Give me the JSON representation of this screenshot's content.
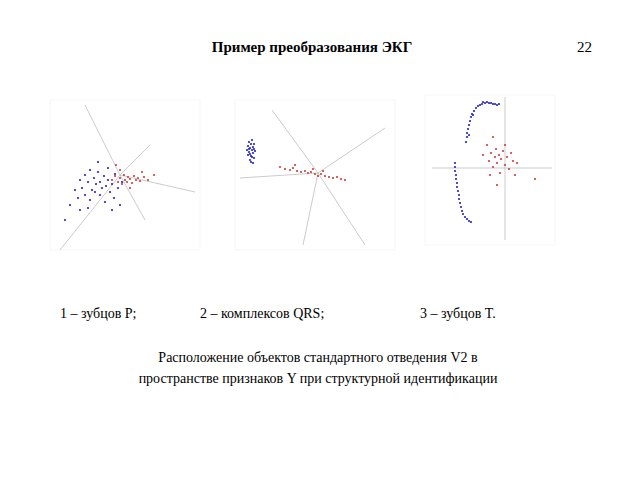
{
  "slide": {
    "title": "Пример преобразования ЭКГ",
    "page": 22,
    "caption": [
      "Расположение объектов стандартного отведения V2 в",
      "пространстве признаков Y при структурной идентификации"
    ]
  },
  "chart_data": [
    {
      "type": "scatter",
      "title": "1 – зубцов P;",
      "tick_labels": false,
      "xlim": [
        0,
        150
      ],
      "ylim": [
        0,
        150
      ],
      "series": [
        {
          "color": "#2424c8",
          "marker": "dot",
          "x": [
            20,
            25,
            28,
            30,
            32,
            35,
            35,
            38,
            40,
            40,
            42,
            44,
            45,
            46,
            48,
            50,
            50,
            52,
            54,
            55,
            56,
            58,
            60,
            62,
            64,
            65,
            68,
            70,
            72,
            30,
            15,
            48,
            58,
            38,
            62
          ],
          "values": [
            45,
            60,
            52,
            70,
            62,
            55,
            75,
            68,
            50,
            80,
            60,
            72,
            58,
            66,
            78,
            55,
            68,
            62,
            74,
            48,
            64,
            70,
            58,
            66,
            52,
            76,
            62,
            45,
            68,
            40,
            30,
            88,
            82,
            42,
            40
          ]
        },
        {
          "color": "#d23c3c",
          "marker": "dot",
          "x": [
            62,
            65,
            68,
            70,
            72,
            74,
            75,
            77,
            78,
            80,
            82,
            84,
            86,
            88,
            90,
            94,
            98,
            104,
            70,
            80,
            66,
            92
          ],
          "values": [
            70,
            74,
            68,
            72,
            66,
            75,
            70,
            68,
            73,
            71,
            67,
            74,
            70,
            72,
            69,
            73,
            70,
            75,
            80,
            62,
            85,
            78
          ]
        }
      ]
    },
    {
      "type": "scatter",
      "title": "2 – комплексов QRS;",
      "tick_labels": false,
      "xlim": [
        0,
        160
      ],
      "ylim": [
        0,
        150
      ],
      "series": [
        {
          "color": "#2424c8",
          "marker": "dot",
          "x": [
            12,
            13,
            14,
            14,
            15,
            15,
            16,
            16,
            17,
            17,
            18,
            18,
            19,
            19,
            20,
            13,
            15,
            16,
            18,
            17,
            14,
            19
          ],
          "values": [
            100,
            104,
            98,
            108,
            96,
            102,
            106,
            94,
            100,
            110,
            97,
            103,
            92,
            106,
            99,
            95,
            90,
            88,
            87,
            93,
            101,
            101
          ]
        },
        {
          "color": "#d23c3c",
          "marker": "dot",
          "x": [
            45,
            50,
            55,
            58,
            62,
            66,
            70,
            73,
            76,
            80,
            83,
            86,
            90,
            94,
            98,
            102,
            106,
            110,
            60,
            78,
            88
          ],
          "values": [
            83,
            81,
            80,
            82,
            79,
            78,
            79,
            77,
            78,
            76,
            74,
            76,
            74,
            73,
            72,
            73,
            71,
            70,
            85,
            81,
            79
          ]
        }
      ]
    },
    {
      "type": "scatter",
      "title": "3 – зубцов T.",
      "tick_labels": false,
      "xlim": [
        0,
        130
      ],
      "ylim": [
        0,
        150
      ],
      "series": [
        {
          "color": "#2424c8",
          "marker": "dot",
          "x": [
            41,
            42,
            42,
            43,
            44,
            45,
            46,
            47,
            49,
            51,
            53,
            55,
            57,
            60,
            62,
            64,
            66,
            68,
            70,
            72,
            74,
            44,
            48,
            58,
            30,
            30,
            30,
            31,
            31,
            32,
            32,
            33,
            34,
            34,
            35,
            36,
            37,
            38,
            40,
            42,
            44,
            46
          ],
          "values": [
            103,
            108,
            112,
            116,
            120,
            124,
            128,
            131,
            134,
            137,
            139,
            140,
            141,
            142,
            143,
            142,
            142,
            141,
            141,
            140,
            141,
            110,
            130,
            143,
            82,
            78,
            74,
            70,
            66,
            62,
            58,
            54,
            50,
            46,
            42,
            38,
            34,
            31,
            28,
            26,
            24,
            23
          ]
        },
        {
          "color": "#d23c3c",
          "marker": "dot",
          "x": [
            58,
            62,
            64,
            66,
            68,
            70,
            71,
            72,
            74,
            75,
            76,
            78,
            80,
            82,
            84,
            86,
            88,
            90,
            72,
            68,
            92,
            80,
            65,
            110
          ],
          "values": [
            90,
            100,
            84,
            92,
            78,
            88,
            96,
            82,
            90,
            72,
            86,
            94,
            80,
            88,
            76,
            92,
            84,
            70,
            60,
            108,
            82,
            100,
            70,
            66
          ]
        }
      ]
    }
  ]
}
